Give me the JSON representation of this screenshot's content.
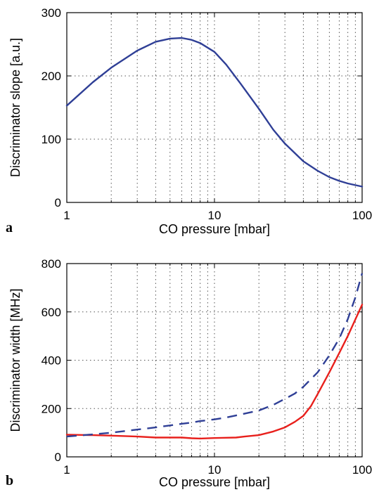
{
  "chart_data": [
    {
      "type": "line",
      "panel_label": "a",
      "xlabel": "CO pressure [mbar]",
      "ylabel": "Discriminator slope [a.u.]",
      "xscale": "log",
      "xlim": [
        1,
        100
      ],
      "ylim": [
        0,
        300
      ],
      "xticks": [
        1,
        10,
        100
      ],
      "xtick_labels": [
        "1",
        "10",
        "100"
      ],
      "yticks": [
        0,
        100,
        200,
        300
      ],
      "ytick_labels": [
        "0",
        "100",
        "200",
        "300"
      ],
      "grid": true,
      "series": [
        {
          "color": "#2f3f96",
          "style": "solid",
          "x": [
            1,
            1.5,
            2,
            3,
            4,
            5,
            6,
            7,
            8,
            10,
            12,
            15,
            20,
            25,
            30,
            40,
            50,
            60,
            70,
            80,
            100
          ],
          "y": [
            153,
            190,
            213,
            240,
            254,
            259,
            260,
            257,
            252,
            238,
            218,
            188,
            148,
            115,
            93,
            65,
            50,
            40,
            34,
            30,
            25
          ]
        }
      ]
    },
    {
      "type": "line",
      "panel_label": "b",
      "xlabel": "CO pressure [mbar]",
      "ylabel": "Discriminator width [MHz]",
      "xscale": "log",
      "xlim": [
        1,
        100
      ],
      "ylim": [
        0,
        800
      ],
      "xticks": [
        1,
        10,
        100
      ],
      "xtick_labels": [
        "1",
        "10",
        "100"
      ],
      "yticks": [
        0,
        200,
        400,
        600,
        800
      ],
      "ytick_labels": [
        "0",
        "200",
        "400",
        "600",
        "800"
      ],
      "grid": true,
      "series": [
        {
          "color": "#e8201c",
          "style": "solid",
          "x": [
            1,
            1.5,
            2,
            3,
            4,
            5,
            6,
            7,
            8,
            10,
            12,
            14,
            16,
            20,
            25,
            30,
            35,
            40,
            45,
            50,
            60,
            70,
            80,
            100
          ],
          "y": [
            92,
            90,
            88,
            84,
            80,
            80,
            80,
            77,
            76,
            78,
            79,
            80,
            84,
            90,
            105,
            122,
            145,
            170,
            210,
            260,
            350,
            430,
            500,
            630
          ]
        },
        {
          "color": "#2f3f96",
          "style": "dashed",
          "x": [
            1,
            1.5,
            2,
            3,
            4,
            5,
            6,
            7,
            8,
            10,
            12,
            15,
            20,
            25,
            30,
            35,
            40,
            50,
            60,
            70,
            80,
            90,
            100
          ],
          "y": [
            84,
            93,
            100,
            113,
            122,
            130,
            137,
            142,
            148,
            155,
            163,
            175,
            192,
            215,
            240,
            262,
            290,
            350,
            420,
            490,
            570,
            660,
            760
          ]
        }
      ]
    }
  ]
}
